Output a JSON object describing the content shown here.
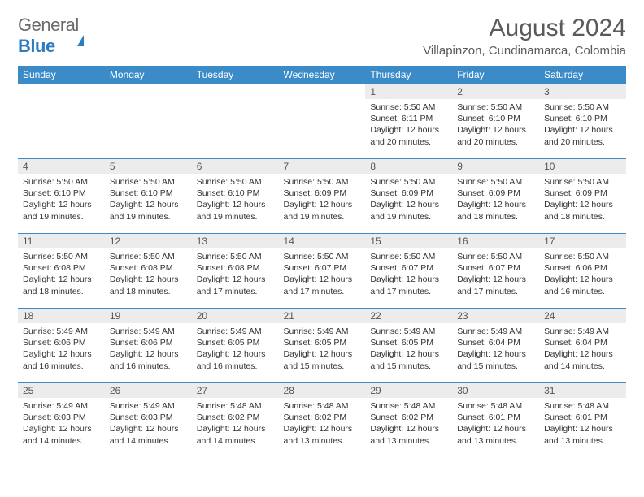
{
  "logo": {
    "general": "General",
    "blue": "Blue"
  },
  "title": "August 2024",
  "location": "Villapinzon, Cundinamarca, Colombia",
  "colors": {
    "header_bg": "#3b8bc9",
    "header_text": "#ffffff",
    "row_stripe": "#ececec",
    "border": "#3b8bc9",
    "body_text": "#333333",
    "logo_gray": "#6b6b6b",
    "logo_blue": "#2d7cc1",
    "title_gray": "#5a5a5a"
  },
  "typography": {
    "title_size": 30,
    "location_size": 15,
    "header_size": 12,
    "daynum_size": 12,
    "detail_size": 10.5
  },
  "day_headers": [
    "Sunday",
    "Monday",
    "Tuesday",
    "Wednesday",
    "Thursday",
    "Friday",
    "Saturday"
  ],
  "weeks": [
    [
      {
        "blank": true
      },
      {
        "blank": true
      },
      {
        "blank": true
      },
      {
        "blank": true
      },
      {
        "n": "1",
        "sunrise": "Sunrise: 5:50 AM",
        "sunset": "Sunset: 6:11 PM",
        "day1": "Daylight: 12 hours",
        "day2": "and 20 minutes."
      },
      {
        "n": "2",
        "sunrise": "Sunrise: 5:50 AM",
        "sunset": "Sunset: 6:10 PM",
        "day1": "Daylight: 12 hours",
        "day2": "and 20 minutes."
      },
      {
        "n": "3",
        "sunrise": "Sunrise: 5:50 AM",
        "sunset": "Sunset: 6:10 PM",
        "day1": "Daylight: 12 hours",
        "day2": "and 20 minutes."
      }
    ],
    [
      {
        "n": "4",
        "sunrise": "Sunrise: 5:50 AM",
        "sunset": "Sunset: 6:10 PM",
        "day1": "Daylight: 12 hours",
        "day2": "and 19 minutes."
      },
      {
        "n": "5",
        "sunrise": "Sunrise: 5:50 AM",
        "sunset": "Sunset: 6:10 PM",
        "day1": "Daylight: 12 hours",
        "day2": "and 19 minutes."
      },
      {
        "n": "6",
        "sunrise": "Sunrise: 5:50 AM",
        "sunset": "Sunset: 6:10 PM",
        "day1": "Daylight: 12 hours",
        "day2": "and 19 minutes."
      },
      {
        "n": "7",
        "sunrise": "Sunrise: 5:50 AM",
        "sunset": "Sunset: 6:09 PM",
        "day1": "Daylight: 12 hours",
        "day2": "and 19 minutes."
      },
      {
        "n": "8",
        "sunrise": "Sunrise: 5:50 AM",
        "sunset": "Sunset: 6:09 PM",
        "day1": "Daylight: 12 hours",
        "day2": "and 19 minutes."
      },
      {
        "n": "9",
        "sunrise": "Sunrise: 5:50 AM",
        "sunset": "Sunset: 6:09 PM",
        "day1": "Daylight: 12 hours",
        "day2": "and 18 minutes."
      },
      {
        "n": "10",
        "sunrise": "Sunrise: 5:50 AM",
        "sunset": "Sunset: 6:09 PM",
        "day1": "Daylight: 12 hours",
        "day2": "and 18 minutes."
      }
    ],
    [
      {
        "n": "11",
        "sunrise": "Sunrise: 5:50 AM",
        "sunset": "Sunset: 6:08 PM",
        "day1": "Daylight: 12 hours",
        "day2": "and 18 minutes."
      },
      {
        "n": "12",
        "sunrise": "Sunrise: 5:50 AM",
        "sunset": "Sunset: 6:08 PM",
        "day1": "Daylight: 12 hours",
        "day2": "and 18 minutes."
      },
      {
        "n": "13",
        "sunrise": "Sunrise: 5:50 AM",
        "sunset": "Sunset: 6:08 PM",
        "day1": "Daylight: 12 hours",
        "day2": "and 17 minutes."
      },
      {
        "n": "14",
        "sunrise": "Sunrise: 5:50 AM",
        "sunset": "Sunset: 6:07 PM",
        "day1": "Daylight: 12 hours",
        "day2": "and 17 minutes."
      },
      {
        "n": "15",
        "sunrise": "Sunrise: 5:50 AM",
        "sunset": "Sunset: 6:07 PM",
        "day1": "Daylight: 12 hours",
        "day2": "and 17 minutes."
      },
      {
        "n": "16",
        "sunrise": "Sunrise: 5:50 AM",
        "sunset": "Sunset: 6:07 PM",
        "day1": "Daylight: 12 hours",
        "day2": "and 17 minutes."
      },
      {
        "n": "17",
        "sunrise": "Sunrise: 5:50 AM",
        "sunset": "Sunset: 6:06 PM",
        "day1": "Daylight: 12 hours",
        "day2": "and 16 minutes."
      }
    ],
    [
      {
        "n": "18",
        "sunrise": "Sunrise: 5:49 AM",
        "sunset": "Sunset: 6:06 PM",
        "day1": "Daylight: 12 hours",
        "day2": "and 16 minutes."
      },
      {
        "n": "19",
        "sunrise": "Sunrise: 5:49 AM",
        "sunset": "Sunset: 6:06 PM",
        "day1": "Daylight: 12 hours",
        "day2": "and 16 minutes."
      },
      {
        "n": "20",
        "sunrise": "Sunrise: 5:49 AM",
        "sunset": "Sunset: 6:05 PM",
        "day1": "Daylight: 12 hours",
        "day2": "and 16 minutes."
      },
      {
        "n": "21",
        "sunrise": "Sunrise: 5:49 AM",
        "sunset": "Sunset: 6:05 PM",
        "day1": "Daylight: 12 hours",
        "day2": "and 15 minutes."
      },
      {
        "n": "22",
        "sunrise": "Sunrise: 5:49 AM",
        "sunset": "Sunset: 6:05 PM",
        "day1": "Daylight: 12 hours",
        "day2": "and 15 minutes."
      },
      {
        "n": "23",
        "sunrise": "Sunrise: 5:49 AM",
        "sunset": "Sunset: 6:04 PM",
        "day1": "Daylight: 12 hours",
        "day2": "and 15 minutes."
      },
      {
        "n": "24",
        "sunrise": "Sunrise: 5:49 AM",
        "sunset": "Sunset: 6:04 PM",
        "day1": "Daylight: 12 hours",
        "day2": "and 14 minutes."
      }
    ],
    [
      {
        "n": "25",
        "sunrise": "Sunrise: 5:49 AM",
        "sunset": "Sunset: 6:03 PM",
        "day1": "Daylight: 12 hours",
        "day2": "and 14 minutes."
      },
      {
        "n": "26",
        "sunrise": "Sunrise: 5:49 AM",
        "sunset": "Sunset: 6:03 PM",
        "day1": "Daylight: 12 hours",
        "day2": "and 14 minutes."
      },
      {
        "n": "27",
        "sunrise": "Sunrise: 5:48 AM",
        "sunset": "Sunset: 6:02 PM",
        "day1": "Daylight: 12 hours",
        "day2": "and 14 minutes."
      },
      {
        "n": "28",
        "sunrise": "Sunrise: 5:48 AM",
        "sunset": "Sunset: 6:02 PM",
        "day1": "Daylight: 12 hours",
        "day2": "and 13 minutes."
      },
      {
        "n": "29",
        "sunrise": "Sunrise: 5:48 AM",
        "sunset": "Sunset: 6:02 PM",
        "day1": "Daylight: 12 hours",
        "day2": "and 13 minutes."
      },
      {
        "n": "30",
        "sunrise": "Sunrise: 5:48 AM",
        "sunset": "Sunset: 6:01 PM",
        "day1": "Daylight: 12 hours",
        "day2": "and 13 minutes."
      },
      {
        "n": "31",
        "sunrise": "Sunrise: 5:48 AM",
        "sunset": "Sunset: 6:01 PM",
        "day1": "Daylight: 12 hours",
        "day2": "and 13 minutes."
      }
    ]
  ]
}
